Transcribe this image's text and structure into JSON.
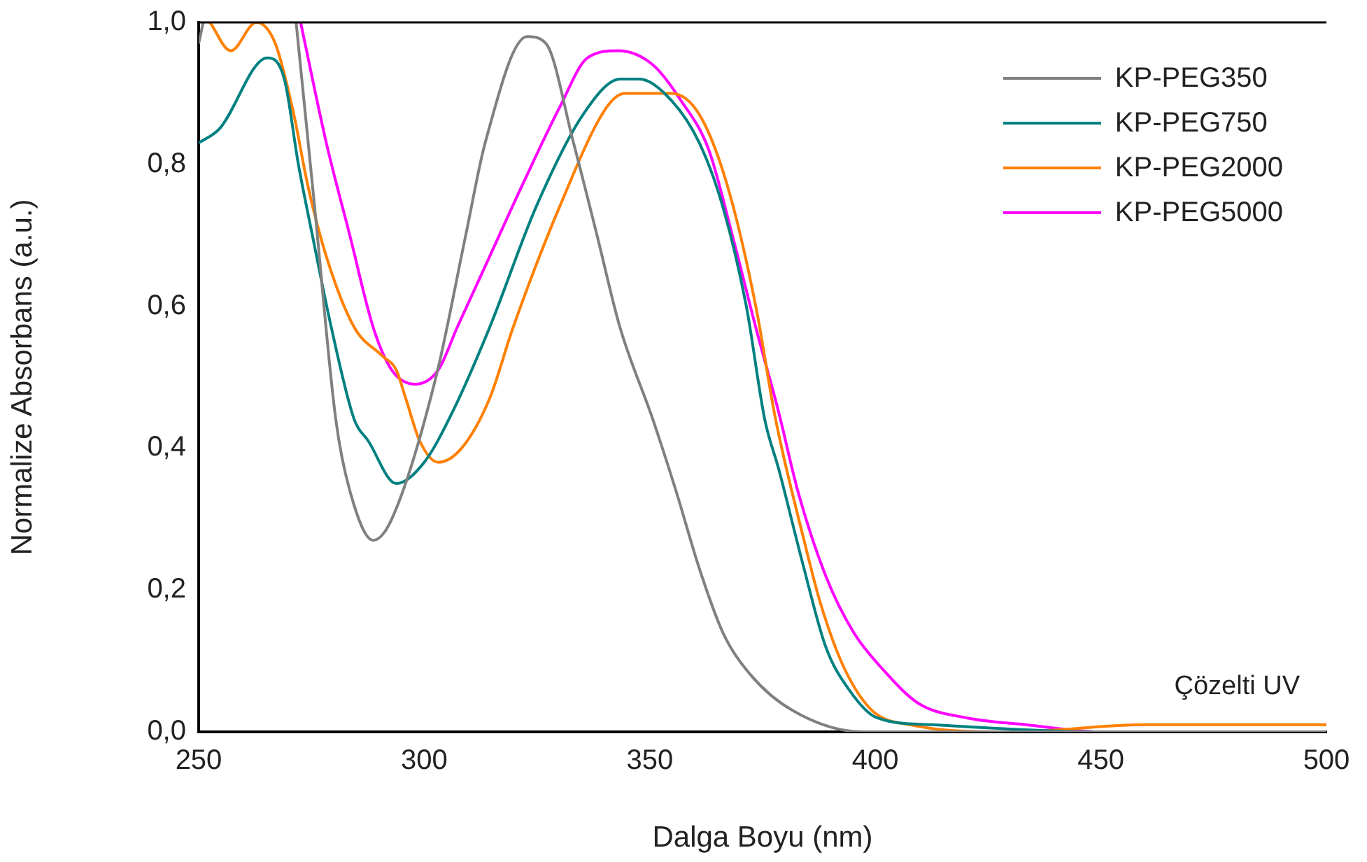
{
  "chart_data": {
    "type": "line",
    "xlabel": "Dalga Boyu (nm)",
    "ylabel": "Normalize Absorbans (a.u.)",
    "annotations": [
      "Çözelti UV"
    ],
    "xlim": [
      250,
      500
    ],
    "ylim": [
      0,
      1
    ],
    "xticks": [
      250,
      300,
      350,
      400,
      450,
      500
    ],
    "yticks": [
      {
        "value": 0,
        "label": "0,0"
      },
      {
        "value": 0.2,
        "label": "0,2"
      },
      {
        "value": 0.4,
        "label": "0,4"
      },
      {
        "value": 0.6,
        "label": "0,6"
      },
      {
        "value": 0.8,
        "label": "0,8"
      },
      {
        "value": 1,
        "label": "1,0"
      }
    ],
    "grid": false,
    "legend": "top right",
    "marker": "none",
    "line_style": "solid",
    "series": [
      {
        "name": "KP-PEG350",
        "color": "#808080",
        "x": [
          250,
          251,
          260,
          271.6,
          275.7,
          280.4,
          283.5,
          288.7,
          292.8,
          302.6,
          309.2,
          313.5,
          322.8,
          327,
          333.1,
          338.3,
          343.4,
          350.7,
          355.8,
          361,
          366.2,
          372.4,
          381.7,
          397.2,
          410,
          450,
          500
        ],
        "values": [
          0.97,
          1.0,
          null,
          1.0,
          0.74,
          0.44,
          0.34,
          0.27,
          0.3,
          0.5,
          0.7,
          0.83,
          0.98,
          0.97,
          0.83,
          0.7,
          0.57,
          0.44,
          0.34,
          0.23,
          0.14,
          0.08,
          0.03,
          0.0,
          0.0,
          0.0,
          0.0
        ]
      },
      {
        "name": "KP-PEG750",
        "color": "#008080",
        "x": [
          250,
          254.6,
          265.2,
          269,
          272.1,
          275.2,
          279.4,
          284.5,
          287.6,
          293.8,
          300,
          306.2,
          314.5,
          324.8,
          335.2,
          343.5,
          347.6,
          354.8,
          361,
          366.2,
          371.4,
          375.5,
          378.6,
          383.8,
          389,
          394.1,
          400.3,
          412.7,
          450,
          500
        ],
        "values": [
          0.83,
          0.85,
          0.95,
          0.92,
          0.8,
          0.7,
          0.57,
          0.44,
          0.41,
          0.35,
          0.38,
          0.45,
          0.57,
          0.74,
          0.87,
          0.92,
          0.92,
          0.89,
          0.83,
          0.74,
          0.6,
          0.44,
          0.37,
          0.24,
          0.12,
          0.06,
          0.02,
          0.01,
          0.0,
          0.0
        ]
      },
      {
        "name": "KP-PEG2000",
        "color": "#ff8000",
        "x": [
          252.5,
          257.1,
          262.8,
          267,
          271.1,
          274.2,
          278.3,
          284.5,
          290.7,
          293.8,
          295.9,
          299,
          303.1,
          308.3,
          314.5,
          319.7,
          330,
          340.4,
          344.5,
          354.8,
          361,
          367.2,
          373.5,
          377.6,
          379.6,
          383.8,
          387.9,
          393.1,
          399.3,
          407.6,
          430,
          460,
          480,
          500
        ],
        "values": [
          1.0,
          0.96,
          1.0,
          0.97,
          0.87,
          0.77,
          0.67,
          0.57,
          0.53,
          0.51,
          0.47,
          0.41,
          0.38,
          0.4,
          0.47,
          0.57,
          0.74,
          0.88,
          0.9,
          0.9,
          0.87,
          0.77,
          0.6,
          0.45,
          0.39,
          0.28,
          0.18,
          0.09,
          0.03,
          0.01,
          0.0,
          0.01,
          0.01,
          0.01
        ]
      },
      {
        "name": "KP-PEG5000",
        "color": "#ff00ff",
        "x": [
          272.6,
          278.3,
          283.5,
          288.7,
          292.8,
          298,
          303.1,
          307.3,
          314.5,
          321.7,
          330,
          336.2,
          343,
          350.7,
          356.9,
          363.1,
          368.3,
          373.5,
          378.6,
          382.8,
          389,
          395.2,
          401.4,
          409.6,
          420,
          433.4,
          450,
          500
        ],
        "values": [
          1.0,
          0.83,
          0.7,
          0.57,
          0.51,
          0.49,
          0.51,
          0.57,
          0.67,
          0.77,
          0.88,
          0.95,
          0.96,
          0.94,
          0.89,
          0.82,
          0.7,
          0.57,
          0.45,
          0.34,
          0.22,
          0.14,
          0.09,
          0.04,
          0.02,
          0.01,
          0.0,
          0.0
        ]
      }
    ]
  }
}
